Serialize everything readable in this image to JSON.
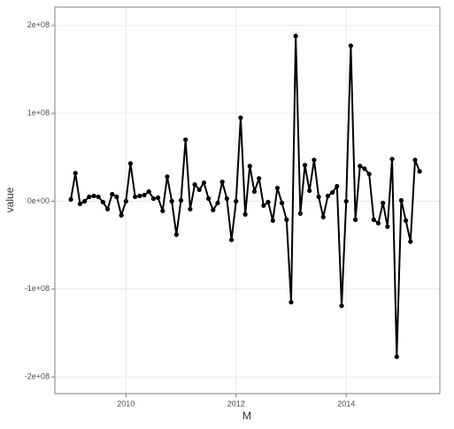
{
  "chart_data": {
    "type": "line",
    "x_label": "M",
    "y_label": "value",
    "x": [
      2009,
      2009.083,
      2009.167,
      2009.25,
      2009.333,
      2009.417,
      2009.5,
      2009.583,
      2009.667,
      2009.75,
      2009.833,
      2009.917,
      2010,
      2010.083,
      2010.167,
      2010.25,
      2010.333,
      2010.417,
      2010.5,
      2010.583,
      2010.667,
      2010.75,
      2010.833,
      2010.917,
      2011,
      2011.083,
      2011.167,
      2011.25,
      2011.333,
      2011.417,
      2011.5,
      2011.583,
      2011.667,
      2011.75,
      2011.833,
      2011.917,
      2012,
      2012.083,
      2012.167,
      2012.25,
      2012.333,
      2012.417,
      2012.5,
      2012.583,
      2012.667,
      2012.75,
      2012.833,
      2012.917,
      2013,
      2013.083,
      2013.167,
      2013.25,
      2013.333,
      2013.417,
      2013.5,
      2013.583,
      2013.667,
      2013.75,
      2013.833,
      2013.917,
      2014,
      2014.083,
      2014.167,
      2014.25,
      2014.333,
      2014.417,
      2014.5,
      2014.583,
      2014.667,
      2014.75,
      2014.833,
      2014.917,
      2015,
      2015.083,
      2015.167,
      2015.25,
      2015.333
    ],
    "values": [
      2000000,
      32000000,
      -3000000,
      0,
      5000000,
      6000000,
      5000000,
      -1000000,
      -9000000,
      8000000,
      5000000,
      -16000000,
      0,
      43000000,
      5000000,
      6000000,
      7000000,
      11000000,
      3000000,
      4000000,
      -11000000,
      28000000,
      0,
      -38000000,
      1000000,
      70000000,
      -9000000,
      19000000,
      13000000,
      21000000,
      3000000,
      -10000000,
      -2000000,
      22000000,
      3000000,
      -44000000,
      0,
      95000000,
      -15000000,
      40000000,
      11000000,
      26000000,
      -5000000,
      -1000000,
      -22000000,
      15000000,
      -2000000,
      -21000000,
      -115000000,
      188000000,
      -14000000,
      41000000,
      12000000,
      47000000,
      5000000,
      -18000000,
      6000000,
      10000000,
      17000000,
      -119000000,
      0,
      177000000,
      -21000000,
      40000000,
      37000000,
      31000000,
      -21000000,
      -25000000,
      -2000000,
      -29000000,
      48000000,
      -177000000,
      1000000,
      -22000000,
      -46000000,
      47000000,
      34000000
    ],
    "color": "#000000",
    "xlim": [
      2008.71,
      2015.7
    ],
    "xticks": [
      2010,
      2012,
      2014
    ],
    "ylim": [
      -219000000,
      221000000
    ],
    "yticks": [
      {
        "value": -200000000,
        "label": "-2e+08"
      },
      {
        "value": -100000000,
        "label": "-1e+08"
      },
      {
        "value": 0,
        "label": "0e+00"
      },
      {
        "value": 100000000,
        "label": "1e+08"
      },
      {
        "value": 200000000,
        "label": "2e+08"
      }
    ],
    "grid": true
  }
}
